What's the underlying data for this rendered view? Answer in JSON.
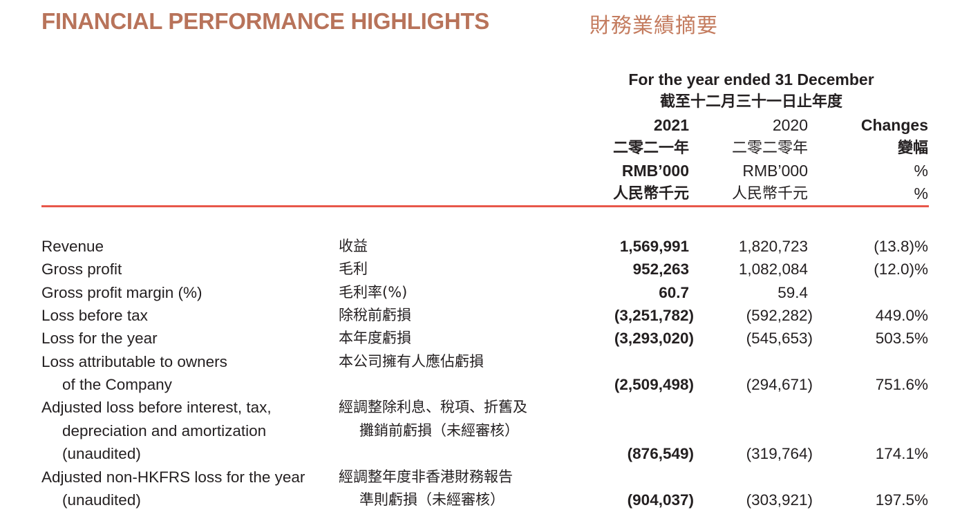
{
  "title": "FINANCIAL PERFORMANCE HIGHLIGHTS",
  "title_zh": "財務業績摘要",
  "colors": {
    "title": "#b8735a",
    "rule": "#e8574a"
  },
  "header": {
    "period": "For the year ended 31 December",
    "period_zh": "截至十二月三十一日止年度",
    "col_2021": {
      "year": "2021",
      "year_zh": "二零二一年",
      "unit": "RMB’000",
      "unit_zh": "人民幣千元"
    },
    "col_2020": {
      "year": "2020",
      "year_zh": "二零二零年",
      "unit": "RMB’000",
      "unit_zh": "人民幣千元"
    },
    "col_changes": {
      "label": "Changes",
      "label_zh": "變幅",
      "unit": "%",
      "unit_zh": "%"
    }
  },
  "rows": [
    {
      "en": [
        "Revenue"
      ],
      "zh": [
        "收益"
      ],
      "v2021": "1,569,991",
      "v2020": "1,820,723",
      "change": "(13.8)%"
    },
    {
      "en": [
        "Gross profit"
      ],
      "zh": [
        "毛利"
      ],
      "v2021": "952,263",
      "v2020": "1,082,084",
      "change": "(12.0)%"
    },
    {
      "en": [
        "Gross profit margin (%)"
      ],
      "zh": [
        "毛利率(%)"
      ],
      "v2021": "60.7",
      "v2020": "59.4",
      "change": ""
    },
    {
      "en": [
        "Loss before tax"
      ],
      "zh": [
        "除稅前虧損"
      ],
      "v2021": "(3,251,782)",
      "v2020": "(592,282)",
      "change": "449.0%"
    },
    {
      "en": [
        "Loss for the year"
      ],
      "zh": [
        "本年度虧損"
      ],
      "v2021": "(3,293,020)",
      "v2020": "(545,653)",
      "change": "503.5%"
    },
    {
      "en": [
        "Loss attributable to owners",
        "of the Company"
      ],
      "zh": [
        "本公司擁有人應佔虧損"
      ],
      "v2021": "(2,509,498)",
      "v2020": "(294,671)",
      "change": "751.6%"
    },
    {
      "en": [
        "Adjusted loss before interest, tax,",
        "depreciation and amortization",
        "(unaudited)"
      ],
      "zh": [
        "經調整除利息、稅項、折舊及",
        "攤銷前虧損（未經審核）"
      ],
      "v2021": "(876,549)",
      "v2020": "(319,764)",
      "change": "174.1%"
    },
    {
      "en": [
        "Adjusted non-HKFRS loss for the year",
        "(unaudited)"
      ],
      "zh": [
        "經調整年度非香港財務報告",
        "準則虧損（未經審核）"
      ],
      "v2021": "(904,037)",
      "v2020": "(303,921)",
      "change": "197.5%"
    }
  ]
}
